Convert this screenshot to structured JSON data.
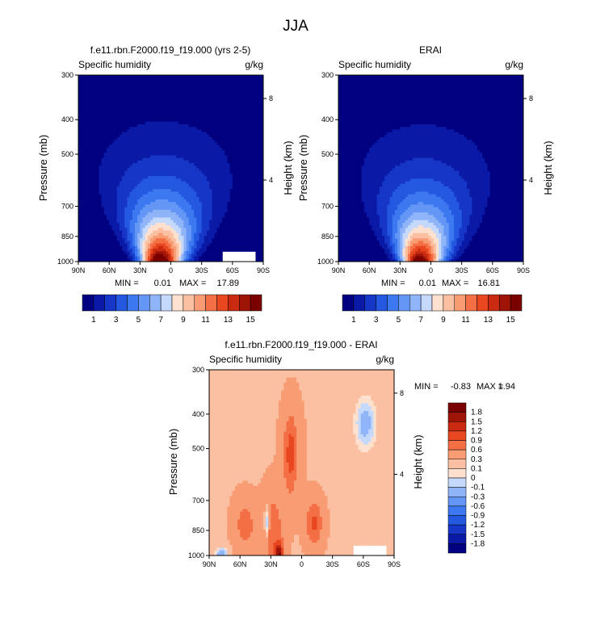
{
  "figure": {
    "title": "JJA"
  },
  "chart_data": [
    {
      "type": "heatmap",
      "title": "f.e11.rbn.F2000.f19_f19.000 (yrs 2-5)",
      "left_label": "Specific humidity",
      "right_label": "g/kg",
      "ylabel": "Pressure (mb)",
      "ylabel_right": "Height (km)",
      "x_ticks": [
        "90N",
        "60N",
        "30N",
        "0",
        "30S",
        "60S",
        "90S"
      ],
      "x_tick_values": [
        90,
        60,
        30,
        0,
        -30,
        -60,
        -90
      ],
      "y_ticks": [
        "300",
        "400",
        "500",
        "700",
        "850",
        "1000"
      ],
      "y_tick_values": [
        300,
        400,
        500,
        700,
        850,
        1000
      ],
      "height_ticks": [
        "8",
        "4"
      ],
      "height_tick_values": [
        8,
        4
      ],
      "min_label": "MIN =",
      "min_value": "0.01",
      "max_label": "MAX =",
      "max_value": "17.89",
      "surface_mask_value": 9.5,
      "levels": [
        1,
        2,
        3,
        4,
        5,
        6,
        7,
        8,
        9,
        10,
        11,
        12,
        13,
        14,
        15
      ]
    },
    {
      "type": "heatmap",
      "title": "ERAI",
      "left_label": "Specific humidity",
      "right_label": "g/kg",
      "ylabel": "Pressure (mb)",
      "ylabel_right": "Height (km)",
      "x_ticks": [
        "90N",
        "60N",
        "30N",
        "0",
        "30S",
        "60S",
        "90S"
      ],
      "x_tick_values": [
        90,
        60,
        30,
        0,
        -30,
        -60,
        -90
      ],
      "y_ticks": [
        "300",
        "400",
        "500",
        "700",
        "850",
        "1000"
      ],
      "y_tick_values": [
        300,
        400,
        500,
        700,
        850,
        1000
      ],
      "height_ticks": [
        "8",
        "4"
      ],
      "height_tick_values": [
        8,
        4
      ],
      "min_label": "MIN =",
      "min_value": "0.01",
      "max_label": "MAX =",
      "max_value": "16.81",
      "levels": [
        1,
        2,
        3,
        4,
        5,
        6,
        7,
        8,
        9,
        10,
        11,
        12,
        13,
        14,
        15
      ]
    },
    {
      "type": "heatmap",
      "title": "f.e11.rbn.F2000.f19_f19.000 - ERAI",
      "left_label": "Specific humidity",
      "right_label": "g/kg",
      "ylabel": "Pressure (mb)",
      "ylabel_right": "Height (km)",
      "x_ticks": [
        "90N",
        "60N",
        "30N",
        "0",
        "30S",
        "60S",
        "90S"
      ],
      "x_tick_values": [
        90,
        60,
        30,
        0,
        -30,
        -60,
        -90
      ],
      "y_ticks": [
        "300",
        "400",
        "500",
        "700",
        "850",
        "1000"
      ],
      "y_tick_values": [
        300,
        400,
        500,
        700,
        850,
        1000
      ],
      "height_ticks": [
        "8",
        "4"
      ],
      "height_tick_values": [
        8,
        4
      ],
      "min_label": "MIN =",
      "min_value": "-0.83",
      "max_label": "MAX =",
      "max_value": "1.94",
      "surface_mask_value": 9.5,
      "levels": [
        -1.8,
        -1.5,
        -1.2,
        -0.9,
        -0.6,
        -0.3,
        -0.1,
        0,
        0.1,
        0.3,
        0.6,
        0.9,
        1.2,
        1.5,
        1.8
      ]
    }
  ],
  "colorbars": {
    "horizontal_labels": [
      "1",
      "3",
      "5",
      "7",
      "9",
      "11",
      "13",
      "15"
    ],
    "vertical_labels": [
      "1.8",
      "1.5",
      "1.2",
      "0.9",
      "0.6",
      "0.3",
      "0.1",
      "0",
      "-0.1",
      "-0.3",
      "-0.6",
      "-0.9",
      "-1.2",
      "-1.5",
      "-1.8"
    ],
    "palette": [
      "#000080",
      "#0a1aa6",
      "#1636c7",
      "#2458e0",
      "#3c78f0",
      "#6496f5",
      "#90b4f8",
      "#c4d9fb",
      "#fde0ce",
      "#fbc0a2",
      "#f89c74",
      "#f46f45",
      "#e8471f",
      "#c92a10",
      "#9e1508",
      "#7a0000"
    ]
  }
}
